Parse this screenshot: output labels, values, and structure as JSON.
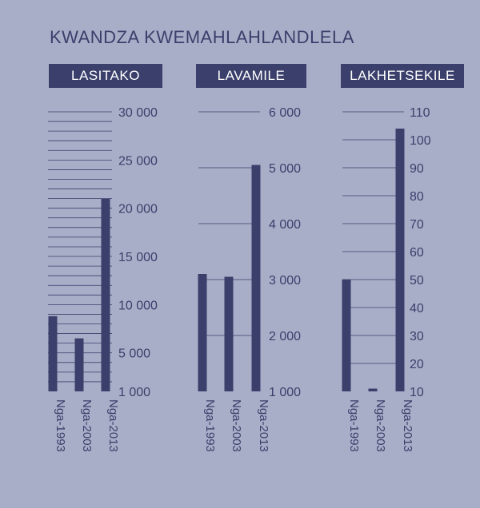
{
  "title": "KWANDZA KWEMAHLAHLANDLELA",
  "colors": {
    "background": "#a9aec8",
    "bar": "#3a3f6b",
    "text": "#3a3f6b",
    "grid": "#3a3f6b"
  },
  "chart_data": [
    {
      "type": "bar",
      "title": "LASITAKO",
      "categories": [
        "Nga-1993",
        "Nga-2003",
        "Nga-2013"
      ],
      "values": [
        8800,
        6500,
        21000
      ],
      "ylim": [
        1000,
        30000
      ],
      "yticks": [
        1000,
        5000,
        10000,
        15000,
        20000,
        25000,
        30000
      ],
      "ytick_labels": [
        "1 000",
        "5 000",
        "10 000",
        "15 000",
        "20 000",
        "25 000",
        "30 000"
      ],
      "grid": true
    },
    {
      "type": "bar",
      "title": "LAVAMILE",
      "categories": [
        "Nga-1993",
        "Nga-2003",
        "Nga-2013"
      ],
      "values": [
        3100,
        3050,
        5050
      ],
      "ylim": [
        1000,
        6000
      ],
      "yticks": [
        1000,
        2000,
        3000,
        4000,
        5000,
        6000
      ],
      "ytick_labels": [
        "1 000",
        "2 000",
        "3 000",
        "4 000",
        "5 000",
        "6 000"
      ],
      "grid": true
    },
    {
      "type": "bar",
      "title": "LAKHETSEKILE",
      "categories": [
        "Nga-1993",
        "Nga-2003",
        "Nga-2013"
      ],
      "values": [
        50,
        11,
        104
      ],
      "ylim": [
        10,
        110
      ],
      "yticks": [
        10,
        20,
        30,
        40,
        50,
        60,
        70,
        80,
        90,
        100,
        110
      ],
      "ytick_labels": [
        "10",
        "20",
        "30",
        "40",
        "50",
        "60",
        "70",
        "80",
        "90",
        "100",
        "110"
      ],
      "grid": true
    }
  ]
}
